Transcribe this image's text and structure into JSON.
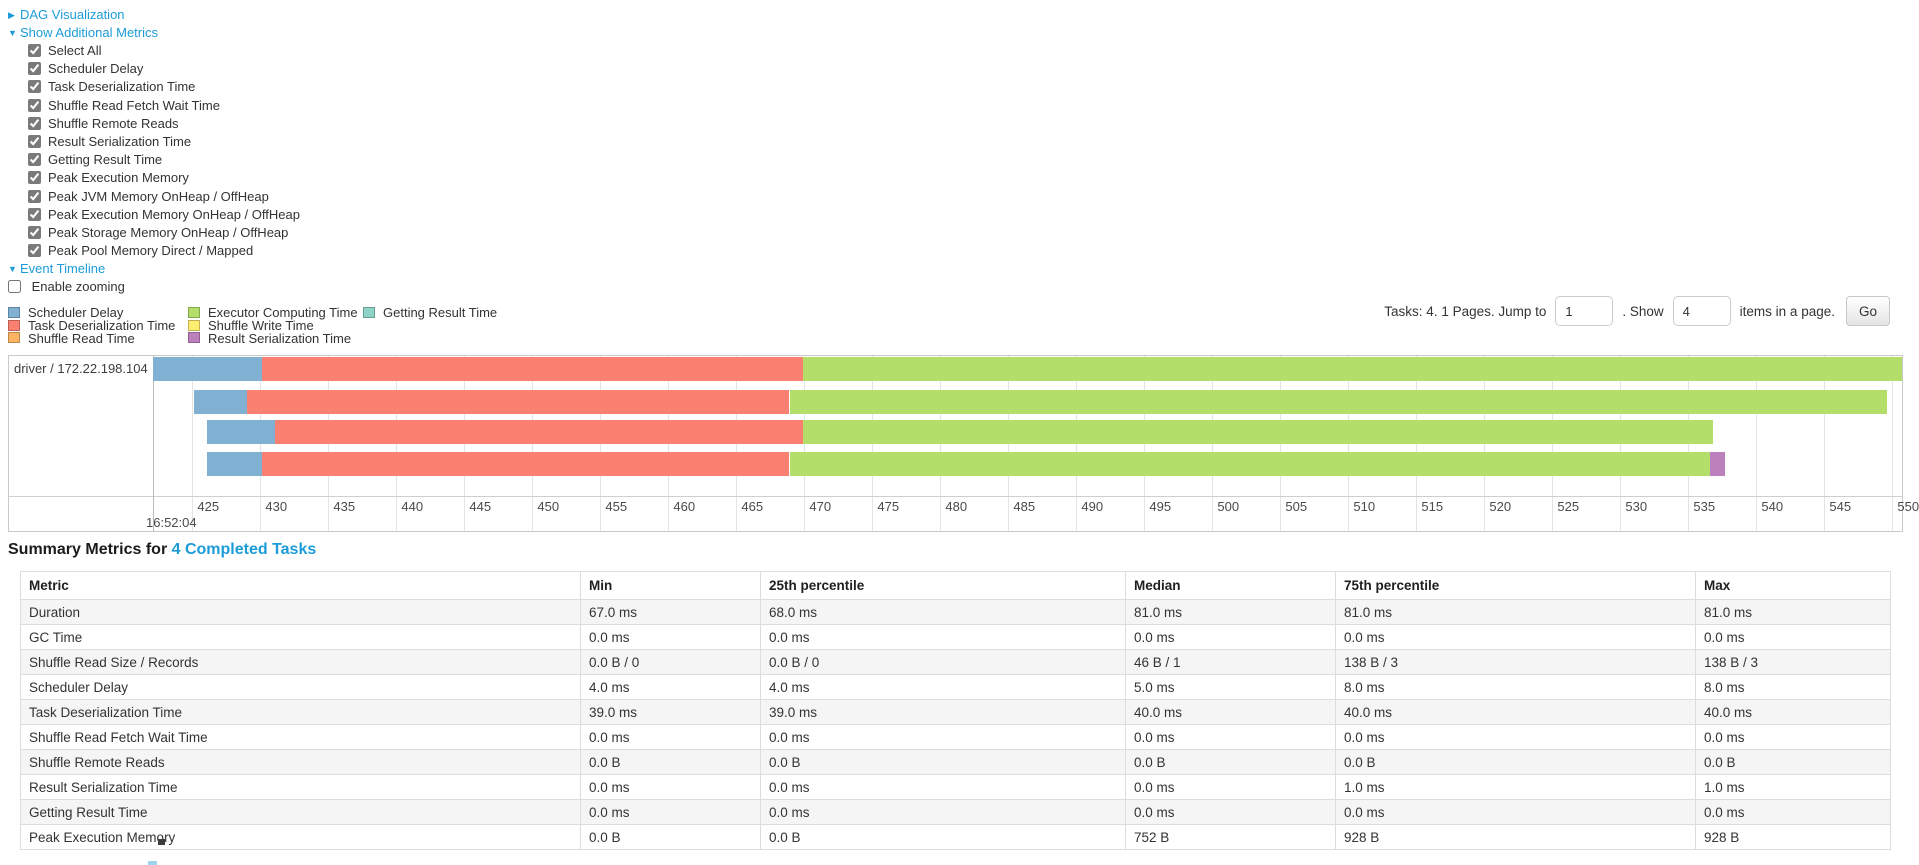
{
  "colors": {
    "accent_blue": "#1b9cd9",
    "scheduler_delay": "#80B1D3",
    "task_deserialization": "#FB8072",
    "shuffle_read": "#FDB462",
    "executor_computing": "#B3DE69",
    "shuffle_write": "#FFED6F",
    "result_serialization": "#BC80BD",
    "getting_result": "#8DD3C7",
    "table_stripe": "#f5f5f5"
  },
  "controls": {
    "dag": {
      "arrow": "▶",
      "label": "DAG Visualization"
    },
    "metrics": {
      "arrow": "▼",
      "label": "Show Additional Metrics"
    },
    "checkboxes": [
      {
        "label": "Select All",
        "checked": true
      },
      {
        "label": "Scheduler Delay",
        "checked": true
      },
      {
        "label": "Task Deserialization Time",
        "checked": true
      },
      {
        "label": "Shuffle Read Fetch Wait Time",
        "checked": true
      },
      {
        "label": "Shuffle Remote Reads",
        "checked": true
      },
      {
        "label": "Result Serialization Time",
        "checked": true
      },
      {
        "label": "Getting Result Time",
        "checked": true
      },
      {
        "label": "Peak Execution Memory",
        "checked": true
      },
      {
        "label": "Peak JVM Memory OnHeap / OffHeap",
        "checked": true
      },
      {
        "label": "Peak Execution Memory OnHeap / OffHeap",
        "checked": true
      },
      {
        "label": "Peak Storage Memory OnHeap / OffHeap",
        "checked": true
      },
      {
        "label": "Peak Pool Memory Direct / Mapped",
        "checked": true
      }
    ],
    "event_timeline": {
      "arrow": "▼",
      "label": "Event Timeline"
    },
    "enable_zooming": {
      "label": "Enable zooming",
      "checked": false
    }
  },
  "legend": {
    "columns": [
      [
        {
          "label": "Scheduler Delay",
          "color": "#80B1D3"
        },
        {
          "label": "Task Deserialization Time",
          "color": "#FB8072"
        },
        {
          "label": "Shuffle Read Time",
          "color": "#FDB462"
        }
      ],
      [
        {
          "label": "Executor Computing Time",
          "color": "#B3DE69"
        },
        {
          "label": "Shuffle Write Time",
          "color": "#FFED6F"
        },
        {
          "label": "Result Serialization Time",
          "color": "#BC80BD"
        }
      ],
      [
        {
          "label": "Getting Result Time",
          "color": "#8DD3C7"
        }
      ]
    ]
  },
  "pagination": {
    "text_before": "Tasks: 4. 1 Pages. Jump to",
    "jump_value": "1",
    "text_mid": ". Show",
    "show_value": "4",
    "text_after": "items in a page.",
    "go_label": "Go"
  },
  "chart_data": {
    "type": "timeline-gantt",
    "title": "Event Timeline",
    "row_label": "driver / 172.22.198.104",
    "x_axis": {
      "unit": "ms within second 16:52:04",
      "start_time": "16:52:04",
      "window": [
        422.1,
        550.7
      ],
      "ticks": [
        425,
        430,
        435,
        440,
        445,
        450,
        455,
        460,
        465,
        470,
        475,
        480,
        485,
        490,
        495,
        500,
        505,
        510,
        515,
        520,
        525,
        530,
        535,
        540,
        545,
        550
      ]
    },
    "tasks": [
      {
        "segments": [
          {
            "name": "scheduler_delay",
            "start": 422.1,
            "end": 430.1
          },
          {
            "name": "task_deserialization",
            "start": 430.1,
            "end": 469.9
          },
          {
            "name": "executor_computing",
            "start": 469.9,
            "end": 550.7
          }
        ]
      },
      {
        "segments": [
          {
            "name": "scheduler_delay",
            "start": 425.1,
            "end": 429.0
          },
          {
            "name": "task_deserialization",
            "start": 429.0,
            "end": 468.9
          },
          {
            "name": "executor_computing",
            "start": 468.9,
            "end": 549.6
          }
        ]
      },
      {
        "segments": [
          {
            "name": "scheduler_delay",
            "start": 426.1,
            "end": 431.1
          },
          {
            "name": "task_deserialization",
            "start": 431.1,
            "end": 469.9
          },
          {
            "name": "executor_computing",
            "start": 469.9,
            "end": 536.8
          }
        ]
      },
      {
        "segments": [
          {
            "name": "scheduler_delay",
            "start": 426.1,
            "end": 430.1
          },
          {
            "name": "task_deserialization",
            "start": 430.1,
            "end": 468.9
          },
          {
            "name": "executor_computing",
            "start": 468.9,
            "end": 536.6
          },
          {
            "name": "result_serialization",
            "start": 536.6,
            "end": 537.7
          }
        ]
      }
    ]
  },
  "summary": {
    "title_prefix": "Summary Metrics for ",
    "title_link": "4 Completed Tasks",
    "table": {
      "headers": [
        "Metric",
        "Min",
        "25th percentile",
        "Median",
        "75th percentile",
        "Max"
      ],
      "rows": [
        [
          "Duration",
          "67.0 ms",
          "68.0 ms",
          "81.0 ms",
          "81.0 ms",
          "81.0 ms"
        ],
        [
          "GC Time",
          "0.0 ms",
          "0.0 ms",
          "0.0 ms",
          "0.0 ms",
          "0.0 ms"
        ],
        [
          "Shuffle Read Size / Records",
          "0.0 B / 0",
          "0.0 B / 0",
          "46 B / 1",
          "138 B / 3",
          "138 B / 3"
        ],
        [
          "Scheduler Delay",
          "4.0 ms",
          "4.0 ms",
          "5.0 ms",
          "8.0 ms",
          "8.0 ms"
        ],
        [
          "Task Deserialization Time",
          "39.0 ms",
          "39.0 ms",
          "40.0 ms",
          "40.0 ms",
          "40.0 ms"
        ],
        [
          "Shuffle Read Fetch Wait Time",
          "0.0 ms",
          "0.0 ms",
          "0.0 ms",
          "0.0 ms",
          "0.0 ms"
        ],
        [
          "Shuffle Remote Reads",
          "0.0 B",
          "0.0 B",
          "0.0 B",
          "0.0 B",
          "0.0 B"
        ],
        [
          "Result Serialization Time",
          "0.0 ms",
          "0.0 ms",
          "0.0 ms",
          "1.0 ms",
          "1.0 ms"
        ],
        [
          "Getting Result Time",
          "0.0 ms",
          "0.0 ms",
          "0.0 ms",
          "0.0 ms",
          "0.0 ms"
        ],
        [
          "Peak Execution Memory",
          "0.0 B",
          "0.0 B",
          "752 B",
          "928 B",
          "928 B"
        ]
      ]
    }
  }
}
